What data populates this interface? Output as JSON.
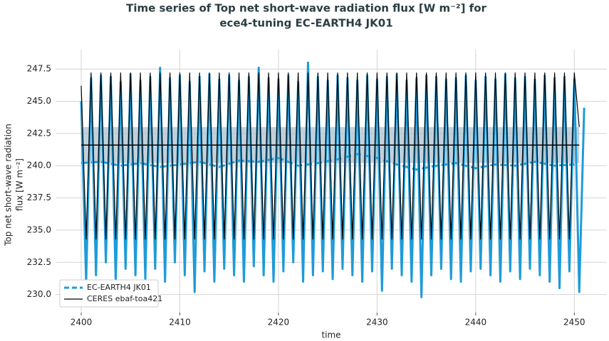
{
  "chart_data": {
    "type": "line",
    "title": [
      "Time series of Top net short-wave radiation flux [W m⁻²] for",
      "ece4-tuning EC-EARTH4 JK01"
    ],
    "ylabel": [
      "Top net short-wave radiation",
      "flux [W m⁻²]"
    ],
    "xlabel": "time",
    "xlim": [
      2397.4,
      2453.3
    ],
    "ylim": [
      228.6,
      249.0
    ],
    "xticks": [
      2400,
      2410,
      2420,
      2430,
      2440,
      2450
    ],
    "yticks": [
      {
        "value": 230,
        "label": "230.0"
      },
      232.5,
      {
        "value": 235,
        "label": "235.0"
      },
      237.5,
      {
        "value": 240,
        "label": "240.0"
      },
      242.5,
      {
        "value": 245,
        "label": "245.0"
      },
      247.5
    ],
    "grid": true,
    "legend": "lower left",
    "band": {
      "x": [
        2400,
        2450.5
      ],
      "low": 240.2,
      "high": 243.0,
      "color": "#a9bccb"
    },
    "mean_line": {
      "x": [
        2400,
        2450.5
      ],
      "value": 241.6,
      "color": "#000000"
    },
    "series": [
      {
        "color": "#1f9bd8",
        "width": 3,
        "linestyle": "solid",
        "x": [
          2400,
          2400.5,
          2401,
          2401.5,
          2402,
          2402.5,
          2403,
          2403.5,
          2404,
          2404.5,
          2405,
          2405.5,
          2406,
          2406.5,
          2407,
          2407.5,
          2408,
          2408.5,
          2409,
          2409.5,
          2410,
          2410.5,
          2411,
          2411.5,
          2412,
          2412.5,
          2413,
          2413.5,
          2414,
          2414.5,
          2415,
          2415.5,
          2416,
          2416.5,
          2417,
          2417.5,
          2418,
          2418.5,
          2419,
          2419.5,
          2420,
          2420.5,
          2421,
          2421.5,
          2422,
          2422.5,
          2423,
          2423.5,
          2424,
          2424.5,
          2425,
          2425.5,
          2426,
          2426.5,
          2427,
          2427.5,
          2428,
          2428.5,
          2429,
          2429.5,
          2430,
          2430.5,
          2431,
          2431.5,
          2432,
          2432.5,
          2433,
          2433.5,
          2434,
          2434.5,
          2435,
          2435.5,
          2436,
          2436.5,
          2437,
          2437.5,
          2438,
          2438.5,
          2439,
          2439.5,
          2440,
          2440.5,
          2441,
          2441.5,
          2442,
          2442.5,
          2443,
          2443.5,
          2444,
          2444.5,
          2445,
          2445.5,
          2446,
          2446.5,
          2447,
          2447.5,
          2448,
          2448.5,
          2449,
          2449.5,
          2450,
          2450.5,
          2451
        ],
        "values": [
          245.0,
          231.0,
          246.8,
          231.5,
          247.0,
          232.5,
          246.9,
          231.0,
          246.5,
          232.0,
          247.1,
          231.5,
          246.6,
          231.2,
          246.9,
          232.0,
          247.6,
          231.0,
          246.8,
          232.5,
          247.0,
          231.5,
          246.5,
          230.2,
          246.9,
          231.8,
          247.1,
          231.0,
          246.7,
          232.0,
          247.0,
          231.5,
          246.6,
          231.0,
          246.9,
          232.2,
          247.6,
          231.5,
          246.8,
          231.0,
          246.7,
          231.8,
          247.0,
          232.5,
          246.5,
          231.0,
          248.0,
          231.5,
          246.9,
          231.8,
          246.6,
          231.2,
          247.0,
          232.0,
          246.8,
          231.5,
          246.6,
          231.0,
          247.0,
          231.8,
          246.7,
          230.3,
          246.9,
          232.0,
          247.1,
          231.5,
          246.6,
          231.0,
          246.8,
          229.8,
          247.0,
          231.5,
          246.9,
          232.0,
          246.7,
          231.2,
          246.8,
          231.0,
          247.0,
          231.8,
          246.6,
          232.0,
          246.9,
          231.5,
          246.7,
          231.0,
          247.1,
          231.8,
          246.8,
          231.2,
          246.9,
          232.0,
          246.7,
          231.5,
          247.0,
          231.0,
          246.8,
          230.5,
          246.9,
          231.8,
          246.7,
          230.2,
          244.5
        ]
      },
      {
        "name": "EC-EARTH4 JK01",
        "color": "#1f9bd8",
        "width": 3,
        "linestyle": "dashed",
        "x": [
          2400,
          2402,
          2404,
          2406,
          2408,
          2410,
          2412,
          2414,
          2416,
          2418,
          2420,
          2422,
          2424,
          2426,
          2428,
          2430,
          2432,
          2434,
          2436,
          2438,
          2440,
          2442,
          2444,
          2446,
          2448,
          2450
        ],
        "values": [
          240.2,
          240.3,
          240.0,
          240.2,
          239.9,
          240.1,
          240.3,
          239.9,
          240.4,
          240.3,
          240.6,
          240.0,
          240.2,
          240.5,
          240.9,
          240.6,
          240.1,
          239.7,
          240.0,
          240.2,
          239.8,
          240.1,
          240.0,
          240.3,
          240.0,
          240.1
        ]
      },
      {
        "name": "CERES ebaf-toa421",
        "color": "#000000",
        "width": 1.2,
        "linestyle": "solid",
        "x": [
          2400,
          2400.5,
          2401,
          2401.5,
          2402,
          2402.5,
          2403,
          2403.5,
          2404,
          2404.5,
          2405,
          2405.5,
          2406,
          2406.5,
          2407,
          2407.5,
          2408,
          2408.5,
          2409,
          2409.5,
          2410,
          2410.5,
          2411,
          2411.5,
          2412,
          2412.5,
          2413,
          2413.5,
          2414,
          2414.5,
          2415,
          2415.5,
          2416,
          2416.5,
          2417,
          2417.5,
          2418,
          2418.5,
          2419,
          2419.5,
          2420,
          2420.5,
          2421,
          2421.5,
          2422,
          2422.5,
          2423,
          2423.5,
          2424,
          2424.5,
          2425,
          2425.5,
          2426,
          2426.5,
          2427,
          2427.5,
          2428,
          2428.5,
          2429,
          2429.5,
          2430,
          2430.5,
          2431,
          2431.5,
          2432,
          2432.5,
          2433,
          2433.5,
          2434,
          2434.5,
          2435,
          2435.5,
          2436,
          2436.5,
          2437,
          2437.5,
          2438,
          2438.5,
          2439,
          2439.5,
          2440,
          2440.5,
          2441,
          2441.5,
          2442,
          2442.5,
          2443,
          2443.5,
          2444,
          2444.5,
          2445,
          2445.5,
          2446,
          2446.5,
          2447,
          2447.5,
          2448,
          2448.5,
          2449,
          2449.5,
          2450,
          2450.5
        ],
        "values": [
          246.2,
          234.3,
          247.2,
          234.3,
          247.2,
          234.3,
          247.2,
          234.3,
          247.2,
          234.3,
          247.2,
          234.3,
          247.2,
          234.3,
          247.2,
          234.3,
          247.2,
          234.3,
          247.2,
          234.3,
          247.2,
          234.3,
          247.2,
          234.3,
          247.2,
          234.3,
          247.2,
          234.3,
          247.2,
          234.3,
          247.2,
          234.3,
          247.2,
          234.3,
          247.2,
          234.3,
          247.2,
          234.3,
          247.2,
          234.3,
          247.2,
          234.3,
          247.2,
          234.3,
          247.2,
          234.3,
          247.2,
          234.3,
          247.2,
          234.3,
          247.2,
          234.3,
          247.2,
          234.3,
          247.2,
          234.3,
          247.2,
          234.3,
          247.2,
          234.3,
          247.2,
          234.3,
          247.2,
          234.3,
          247.2,
          234.3,
          247.2,
          234.3,
          247.2,
          234.3,
          247.2,
          234.3,
          247.2,
          234.3,
          247.2,
          234.3,
          247.2,
          234.3,
          247.2,
          234.3,
          247.2,
          234.3,
          247.2,
          234.3,
          247.2,
          234.3,
          247.2,
          234.3,
          247.2,
          234.3,
          247.2,
          234.3,
          247.2,
          234.3,
          247.2,
          234.3,
          247.2,
          234.3,
          247.2,
          234.3,
          247.2,
          243.0
        ]
      }
    ]
  }
}
